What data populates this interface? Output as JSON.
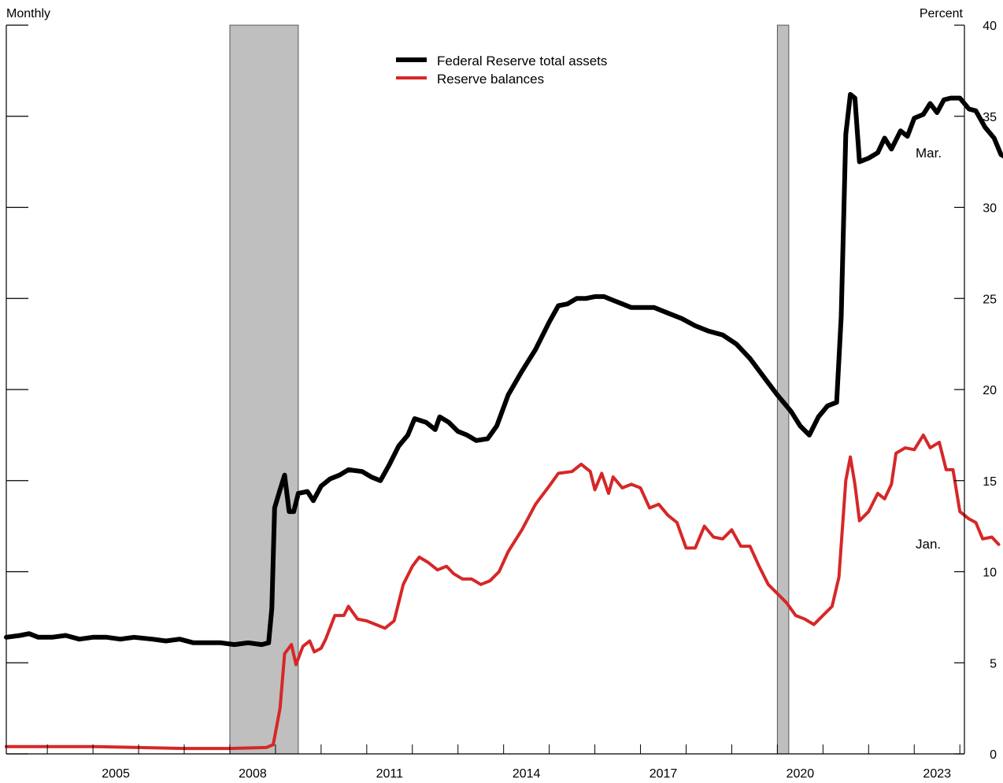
{
  "chart_data": {
    "type": "line",
    "title": "",
    "left_axis_label": "Monthly",
    "right_axis_label": "Percent",
    "ylim": [
      0,
      40
    ],
    "xlim": [
      2003.1,
      2024.1
    ],
    "y_ticks": [
      "0",
      "5",
      "10",
      "15",
      "20",
      "25",
      "30",
      "35",
      "40"
    ],
    "x_ticks": [
      {
        "label": "2005",
        "value": 2005.5
      },
      {
        "label": "2008",
        "value": 2008.5
      },
      {
        "label": "2011",
        "value": 2011.5
      },
      {
        "label": "2014",
        "value": 2014.5
      },
      {
        "label": "2017",
        "value": 2017.5
      },
      {
        "label": "2020",
        "value": 2020.5
      },
      {
        "label": "2023",
        "value": 2023.5
      }
    ],
    "recessions": [
      {
        "start": 2008.0,
        "end": 2009.5
      },
      {
        "start": 2020.0,
        "end": 2020.25
      }
    ],
    "legend_position": "top-center",
    "series": [
      {
        "name": "Federal Reserve total assets",
        "color": "#000000",
        "end_label": "Mar.",
        "points": [
          [
            2003.1,
            6.4
          ],
          [
            2003.4,
            6.5
          ],
          [
            2003.6,
            6.6
          ],
          [
            2003.8,
            6.4
          ],
          [
            2004.1,
            6.4
          ],
          [
            2004.4,
            6.5
          ],
          [
            2004.7,
            6.3
          ],
          [
            2005.0,
            6.4
          ],
          [
            2005.3,
            6.4
          ],
          [
            2005.6,
            6.3
          ],
          [
            2005.9,
            6.4
          ],
          [
            2006.3,
            6.3
          ],
          [
            2006.6,
            6.2
          ],
          [
            2006.9,
            6.3
          ],
          [
            2007.2,
            6.1
          ],
          [
            2007.5,
            6.1
          ],
          [
            2007.8,
            6.1
          ],
          [
            2008.1,
            6.0
          ],
          [
            2008.4,
            6.1
          ],
          [
            2008.7,
            6.0
          ],
          [
            2008.85,
            6.1
          ],
          [
            2008.92,
            8.0
          ],
          [
            2008.98,
            13.5
          ],
          [
            2009.1,
            14.5
          ],
          [
            2009.2,
            15.3
          ],
          [
            2009.3,
            13.3
          ],
          [
            2009.4,
            13.3
          ],
          [
            2009.5,
            14.3
          ],
          [
            2009.7,
            14.4
          ],
          [
            2009.83,
            13.9
          ],
          [
            2010.0,
            14.7
          ],
          [
            2010.2,
            15.1
          ],
          [
            2010.4,
            15.3
          ],
          [
            2010.6,
            15.6
          ],
          [
            2010.9,
            15.5
          ],
          [
            2011.1,
            15.2
          ],
          [
            2011.3,
            15.0
          ],
          [
            2011.5,
            15.9
          ],
          [
            2011.7,
            16.9
          ],
          [
            2011.9,
            17.5
          ],
          [
            2012.05,
            18.4
          ],
          [
            2012.3,
            18.2
          ],
          [
            2012.5,
            17.8
          ],
          [
            2012.6,
            18.5
          ],
          [
            2012.8,
            18.2
          ],
          [
            2013.0,
            17.7
          ],
          [
            2013.2,
            17.5
          ],
          [
            2013.4,
            17.2
          ],
          [
            2013.65,
            17.3
          ],
          [
            2013.85,
            18.0
          ],
          [
            2014.1,
            19.7
          ],
          [
            2014.4,
            21.0
          ],
          [
            2014.7,
            22.2
          ],
          [
            2015.0,
            23.7
          ],
          [
            2015.2,
            24.6
          ],
          [
            2015.4,
            24.7
          ],
          [
            2015.6,
            25.0
          ],
          [
            2015.8,
            25.0
          ],
          [
            2016.0,
            25.1
          ],
          [
            2016.2,
            25.1
          ],
          [
            2016.4,
            24.9
          ],
          [
            2016.6,
            24.7
          ],
          [
            2016.8,
            24.5
          ],
          [
            2017.0,
            24.5
          ],
          [
            2017.3,
            24.5
          ],
          [
            2017.6,
            24.2
          ],
          [
            2017.9,
            23.9
          ],
          [
            2018.2,
            23.5
          ],
          [
            2018.5,
            23.2
          ],
          [
            2018.8,
            23.0
          ],
          [
            2019.1,
            22.5
          ],
          [
            2019.4,
            21.7
          ],
          [
            2019.7,
            20.7
          ],
          [
            2020.0,
            19.7
          ],
          [
            2020.3,
            18.8
          ],
          [
            2020.5,
            18.0
          ],
          [
            2020.7,
            17.5
          ],
          [
            2020.9,
            18.5
          ],
          [
            2021.1,
            19.1
          ],
          [
            2021.3,
            19.3
          ],
          [
            2021.4,
            24.0
          ],
          [
            2021.5,
            34.0
          ],
          [
            2021.6,
            36.2
          ],
          [
            2021.7,
            36.0
          ],
          [
            2021.8,
            32.5
          ],
          [
            2022.0,
            32.7
          ],
          [
            2022.2,
            33.0
          ],
          [
            2022.35,
            33.8
          ],
          [
            2022.5,
            33.2
          ],
          [
            2022.7,
            34.2
          ],
          [
            2022.85,
            33.9
          ],
          [
            2023.0,
            34.9
          ],
          [
            2023.2,
            35.1
          ],
          [
            2023.35,
            35.7
          ],
          [
            2023.5,
            35.2
          ],
          [
            2023.65,
            35.9
          ],
          [
            2023.8,
            36.0
          ],
          [
            2024.0,
            36.0
          ],
          [
            2024.2,
            35.4
          ],
          [
            2024.35,
            35.3
          ],
          [
            2024.55,
            34.4
          ],
          [
            2024.75,
            33.8
          ],
          [
            2024.9,
            32.9
          ],
          [
            2025.1,
            32.6
          ],
          [
            2025.25,
            32.1
          ],
          [
            2025.4,
            33.1
          ]
        ]
      },
      {
        "name": "Reserve balances",
        "color": "#d62728",
        "end_label": "Jan.",
        "points": [
          [
            2003.1,
            0.4
          ],
          [
            2004.0,
            0.4
          ],
          [
            2005.0,
            0.4
          ],
          [
            2006.0,
            0.35
          ],
          [
            2007.0,
            0.3
          ],
          [
            2008.0,
            0.3
          ],
          [
            2008.8,
            0.35
          ],
          [
            2008.95,
            0.5
          ],
          [
            2009.1,
            2.5
          ],
          [
            2009.2,
            5.5
          ],
          [
            2009.35,
            6.0
          ],
          [
            2009.45,
            4.9
          ],
          [
            2009.6,
            5.9
          ],
          [
            2009.75,
            6.2
          ],
          [
            2009.85,
            5.6
          ],
          [
            2010.0,
            5.8
          ],
          [
            2010.1,
            6.3
          ],
          [
            2010.3,
            7.6
          ],
          [
            2010.5,
            7.6
          ],
          [
            2010.6,
            8.1
          ],
          [
            2010.8,
            7.4
          ],
          [
            2011.0,
            7.3
          ],
          [
            2011.2,
            7.1
          ],
          [
            2011.4,
            6.9
          ],
          [
            2011.6,
            7.3
          ],
          [
            2011.8,
            9.3
          ],
          [
            2012.0,
            10.3
          ],
          [
            2012.15,
            10.8
          ],
          [
            2012.35,
            10.5
          ],
          [
            2012.55,
            10.1
          ],
          [
            2012.75,
            10.3
          ],
          [
            2012.9,
            9.9
          ],
          [
            2013.1,
            9.6
          ],
          [
            2013.3,
            9.6
          ],
          [
            2013.5,
            9.3
          ],
          [
            2013.7,
            9.5
          ],
          [
            2013.9,
            10.0
          ],
          [
            2014.1,
            11.1
          ],
          [
            2014.4,
            12.3
          ],
          [
            2014.7,
            13.7
          ],
          [
            2015.0,
            14.7
          ],
          [
            2015.2,
            15.4
          ],
          [
            2015.5,
            15.5
          ],
          [
            2015.7,
            15.9
          ],
          [
            2015.9,
            15.5
          ],
          [
            2016.0,
            14.5
          ],
          [
            2016.15,
            15.4
          ],
          [
            2016.3,
            14.3
          ],
          [
            2016.4,
            15.2
          ],
          [
            2016.6,
            14.6
          ],
          [
            2016.8,
            14.8
          ],
          [
            2017.0,
            14.6
          ],
          [
            2017.2,
            13.5
          ],
          [
            2017.4,
            13.7
          ],
          [
            2017.6,
            13.1
          ],
          [
            2017.8,
            12.7
          ],
          [
            2018.0,
            11.3
          ],
          [
            2018.2,
            11.3
          ],
          [
            2018.4,
            12.5
          ],
          [
            2018.6,
            11.9
          ],
          [
            2018.8,
            11.8
          ],
          [
            2019.0,
            12.3
          ],
          [
            2019.2,
            11.4
          ],
          [
            2019.4,
            11.4
          ],
          [
            2019.6,
            10.3
          ],
          [
            2019.8,
            9.3
          ],
          [
            2020.0,
            8.8
          ],
          [
            2020.2,
            8.3
          ],
          [
            2020.4,
            7.6
          ],
          [
            2020.6,
            7.4
          ],
          [
            2020.8,
            7.1
          ],
          [
            2021.0,
            7.6
          ],
          [
            2021.2,
            8.1
          ],
          [
            2021.35,
            9.7
          ],
          [
            2021.5,
            15.0
          ],
          [
            2021.6,
            16.3
          ],
          [
            2021.7,
            14.8
          ],
          [
            2021.8,
            12.8
          ],
          [
            2022.0,
            13.3
          ],
          [
            2022.2,
            14.3
          ],
          [
            2022.35,
            14.0
          ],
          [
            2022.5,
            14.8
          ],
          [
            2022.6,
            16.5
          ],
          [
            2022.8,
            16.8
          ],
          [
            2023.0,
            16.7
          ],
          [
            2023.2,
            17.5
          ],
          [
            2023.35,
            16.8
          ],
          [
            2023.55,
            17.1
          ],
          [
            2023.7,
            15.6
          ],
          [
            2023.85,
            15.6
          ],
          [
            2024.0,
            13.3
          ],
          [
            2024.2,
            12.9
          ],
          [
            2024.35,
            12.7
          ],
          [
            2024.5,
            11.8
          ],
          [
            2024.7,
            11.9
          ],
          [
            2024.85,
            11.5
          ]
        ]
      }
    ]
  }
}
